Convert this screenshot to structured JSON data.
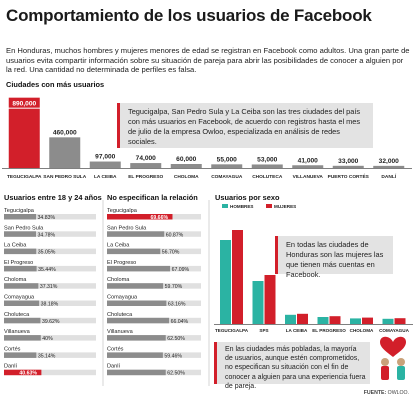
{
  "title": "Comportamiento de los usuarios de Facebook",
  "intro": "En Honduras, muchos hombres y mujeres menores de edad se registran en Facebook como adultos. Una gran parte de usuarios evita compartir información sobre su situación de pareja para abrir las posibilidades de conocer a alguien por la red. Una cantidad no determinada de perfiles es falsa.",
  "sections": {
    "cities": "Ciudades con más usuarios",
    "age": "Usuarios entre 18 y 24 años",
    "relationship": "No especifican la relación",
    "sex": "Usuarios por sexo"
  },
  "callouts": {
    "cities": "Tegucigalpa, San Pedro Sula y La Ceiba son las tres ciudades del país con más usuarios en Facebook, de acuerdo con registros hasta el mes de julio de la empresa Owloo, especializada en análisis de redes sociales.",
    "sex": "En todas las ciudades de Honduras son las mujeres las que tienen más cuentas en Facebook.",
    "relationship": "En las ciudades más pobladas, la mayoría de usuarios, aunque estén comprometidos, no especifican su situación con el fin de conocer a alguien para una experiencia fuera de pareja."
  },
  "source": {
    "label": "FUENTE:",
    "value": "OWLOO."
  },
  "colors": {
    "red": "#d21f2a",
    "gray": "#8c8c8c",
    "teal": "#2bb3a3",
    "callout_bg": "#e3e3e3",
    "track": "#e0e0e0"
  },
  "chart_data": [
    {
      "type": "bar",
      "title": "Ciudades con más usuarios",
      "categories": [
        "TEGUCIGALPA",
        "SAN PEDRO SULA",
        "LA CEIBA",
        "EL PROGRESO",
        "CHOLOMA",
        "COMAYAGUA",
        "CHOLUTECA",
        "VILLANUEVA",
        "PUERTO CORTÉS",
        "DANLÍ"
      ],
      "values": [
        890000,
        460000,
        97000,
        74000,
        60000,
        55000,
        53000,
        41000,
        33000,
        32000
      ],
      "labels": [
        "890,000",
        "460,000",
        "97,000",
        "74,000",
        "60,000",
        "55,000",
        "53,000",
        "41,000",
        "33,000",
        "32,000"
      ],
      "highlight": 0,
      "ylim": [
        0,
        900000
      ]
    },
    {
      "type": "bar",
      "title": "Usuarios entre 18 y 24 años",
      "orientation": "horizontal",
      "categories": [
        "Tegucigalpa",
        "San Pedro Sula",
        "La Ceiba",
        "El Progreso",
        "Choloma",
        "Comayagua",
        "Choluteca",
        "Villanueva",
        "Cortés",
        "Danlí"
      ],
      "values": [
        34.83,
        34.78,
        35.05,
        35.44,
        37.31,
        38.18,
        39.62,
        40,
        35.14,
        40.63
      ],
      "labels": [
        "34.83%",
        "34.78%",
        "35.05%",
        "35.44%",
        "37.31%",
        "38.18%",
        "39.62%",
        "40%",
        "35.14%",
        "40.63%"
      ],
      "highlight": 9,
      "xlim": [
        0,
        100
      ]
    },
    {
      "type": "bar",
      "title": "No especifican la relación",
      "orientation": "horizontal",
      "categories": [
        "Tegucigalpa",
        "San Pedro Sula",
        "La Ceiba",
        "El Progreso",
        "Choloma",
        "Comayagua",
        "Choluteca",
        "Villanueva",
        "Cortés",
        "Danlí"
      ],
      "values": [
        69.66,
        60.87,
        56.7,
        67.09,
        59.7,
        63.16,
        66.04,
        62.5,
        59.46,
        62.5
      ],
      "labels": [
        "69.66%",
        "60.87%",
        "56.70%",
        "67.09%",
        "59.70%",
        "63.16%",
        "66.04%",
        "62.50%",
        "59.46%",
        "62.50%"
      ],
      "highlight": 0,
      "xlim": [
        0,
        100
      ]
    },
    {
      "type": "bar",
      "title": "Usuarios por sexo",
      "categories": [
        "TEGUCIGALPA",
        "SPS",
        "LA CEIBA",
        "EL PROGRESO",
        "CHOLOMA",
        "COMAYAGUA"
      ],
      "series": [
        {
          "name": "HOMBRES",
          "values": [
            420000,
            215000,
            46000,
            35000,
            28000,
            26000
          ]
        },
        {
          "name": "MUJERES",
          "values": [
            470000,
            245000,
            51000,
            39000,
            32000,
            29000
          ]
        }
      ],
      "ylim": [
        0,
        480000
      ],
      "legend": "top-left"
    }
  ]
}
